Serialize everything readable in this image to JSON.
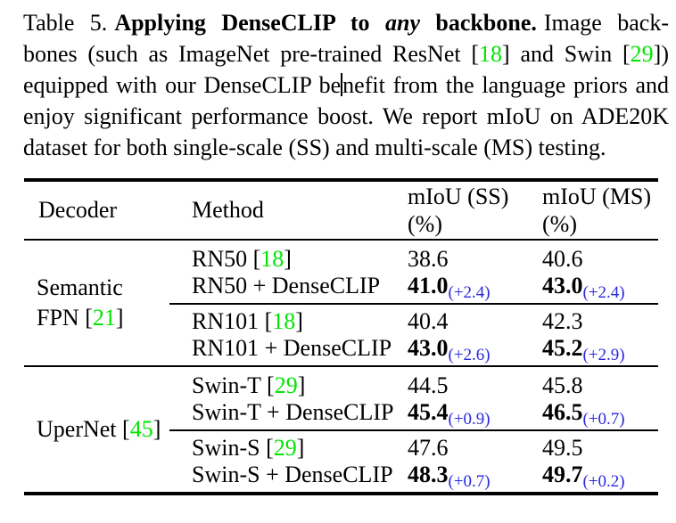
{
  "colors": {
    "citation_green": "#00e600",
    "delta_blue": "#2828e0"
  },
  "caption": {
    "line1": {
      "pre": "Table 5.",
      "bold1": "Applying DenseCLIP to ",
      "bolditalic": "any",
      "bold2": " backbone.",
      "tail": "Image back-"
    },
    "line2": {
      "a": "bones (such as ImageNet pre-trained ResNet [",
      "cite1": "18",
      "b": "] and Swin [",
      "cite2": "29",
      "c": "])"
    },
    "line3": {
      "a": "equipped with our DenseCLIP be",
      "b": "nefit from the language priors and"
    },
    "line4": "enjoy significant performance boost. We report mIoU on ADE20K",
    "line5": "dataset for both single-scale (SS) and multi-scale (MS) testing."
  },
  "table": {
    "headers": {
      "decoder": "Decoder",
      "method": "Method",
      "ss_line1": "mIoU (SS)",
      "ss_line2": "(%)",
      "ms_line1": "mIoU (MS)",
      "ms_line2": "(%)"
    },
    "groups": [
      {
        "decoder_line1": "Semantic",
        "decoder_line2_pre": "FPN [",
        "decoder_cite": "21",
        "decoder_line2_post": "]",
        "rows": [
          {
            "m1": "RN50 [",
            "cite": "18",
            "m2": "]",
            "ss": "38.6",
            "ms": "40.6"
          },
          {
            "m1": "RN50 + DenseCLIP",
            "ss": "41.0",
            "ss_d": "(+2.4)",
            "ms": "43.0",
            "ms_d": "(+2.4)"
          },
          {
            "m1": "RN101 [",
            "cite": "18",
            "m2": "]",
            "ss": "40.4",
            "ms": "42.3"
          },
          {
            "m1": "RN101 + DenseCLIP",
            "ss": "43.0",
            "ss_d": "(+2.6)",
            "ms": "45.2",
            "ms_d": "(+2.9)"
          }
        ]
      },
      {
        "decoder_line1_pre": "UperNet [",
        "decoder_cite": "45",
        "decoder_line1_post": "]",
        "rows": [
          {
            "m1": "Swin-T [",
            "cite": "29",
            "m2": "]",
            "ss": "44.5",
            "ms": "45.8"
          },
          {
            "m1": "Swin-T + DenseCLIP",
            "ss": "45.4",
            "ss_d": "(+0.9)",
            "ms": "46.5",
            "ms_d": "(+0.7)"
          },
          {
            "m1": "Swin-S [",
            "cite": "29",
            "m2": "]",
            "ss": "47.6",
            "ms": "49.5"
          },
          {
            "m1": "Swin-S + DenseCLIP",
            "ss": "48.3",
            "ss_d": "(+0.7)",
            "ms": "49.7",
            "ms_d": "(+0.2)"
          }
        ]
      }
    ]
  }
}
